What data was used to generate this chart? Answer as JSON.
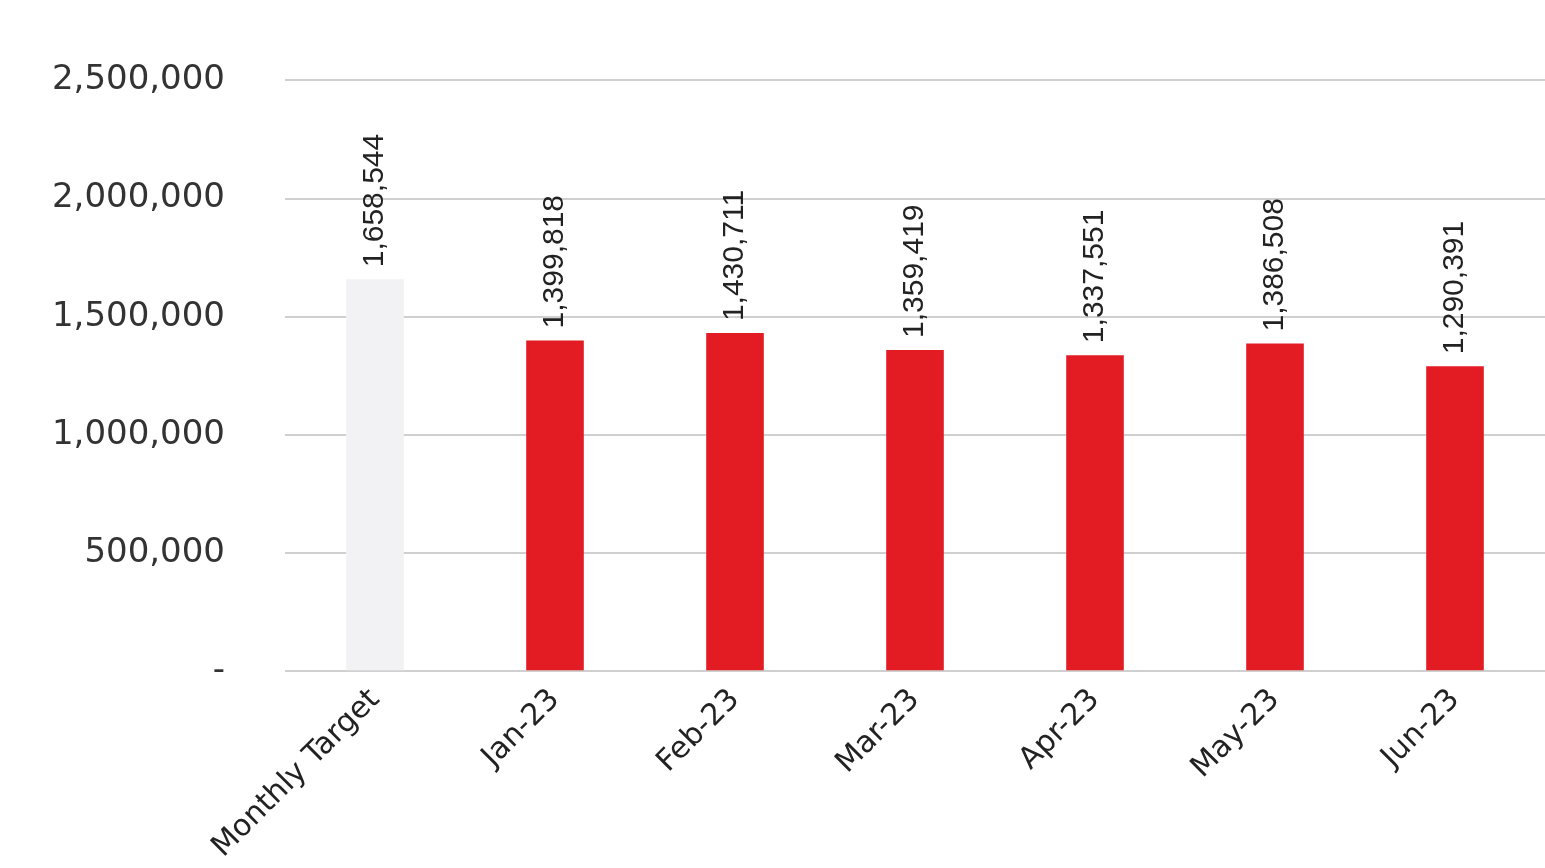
{
  "chart_data": {
    "type": "bar",
    "categories": [
      "Monthly Target",
      "Jan-23",
      "Feb-23",
      "Mar-23",
      "Apr-23",
      "May-23",
      "Jun-23"
    ],
    "values": [
      1658544,
      1399818,
      1430711,
      1359419,
      1337551,
      1386508,
      1290391
    ],
    "colors": [
      "#f2f2f4",
      "#e31b23",
      "#e31b23",
      "#e31b23",
      "#e31b23",
      "#e31b23",
      "#e31b23"
    ],
    "ylim": [
      0,
      2500000
    ],
    "yticks": [
      {
        "value": 0,
        "label": "-"
      },
      {
        "value": 500000,
        "label": "500,000"
      },
      {
        "value": 1000000,
        "label": "1,000,000"
      },
      {
        "value": 1500000,
        "label": "1,500,000"
      },
      {
        "value": 2000000,
        "label": "2,000,000"
      },
      {
        "value": 2500000,
        "label": "2,500,000"
      }
    ],
    "value_labels": [
      "1,658,544",
      "1,399,818",
      "1,430,711",
      "1,359,419",
      "1,337,551",
      "1,386,508",
      "1,290,391"
    ],
    "grid": "y",
    "legend": false
  }
}
